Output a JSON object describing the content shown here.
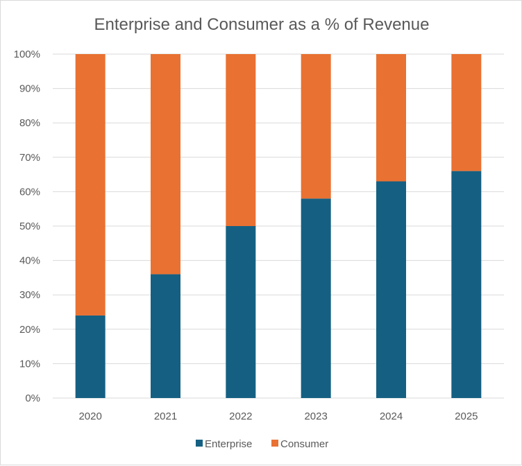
{
  "chart_data": {
    "type": "bar",
    "stacked": true,
    "title": "Enterprise and Consumer as a % of Revenue",
    "xlabel": "",
    "ylabel": "",
    "ylim": [
      0,
      100
    ],
    "yticks": [
      0,
      10,
      20,
      30,
      40,
      50,
      60,
      70,
      80,
      90,
      100
    ],
    "ytick_labels": [
      "0%",
      "10%",
      "20%",
      "30%",
      "40%",
      "50%",
      "60%",
      "70%",
      "80%",
      "90%",
      "100%"
    ],
    "categories": [
      "2020",
      "2021",
      "2022",
      "2023",
      "2024",
      "2025"
    ],
    "series": [
      {
        "name": "Enterprise",
        "color": "#156082",
        "values": [
          24,
          36,
          50,
          58,
          63,
          66
        ]
      },
      {
        "name": "Consumer",
        "color": "#e97132",
        "values": [
          76,
          64,
          50,
          42,
          37,
          34
        ]
      }
    ],
    "grid": true,
    "legend": "bottom"
  }
}
